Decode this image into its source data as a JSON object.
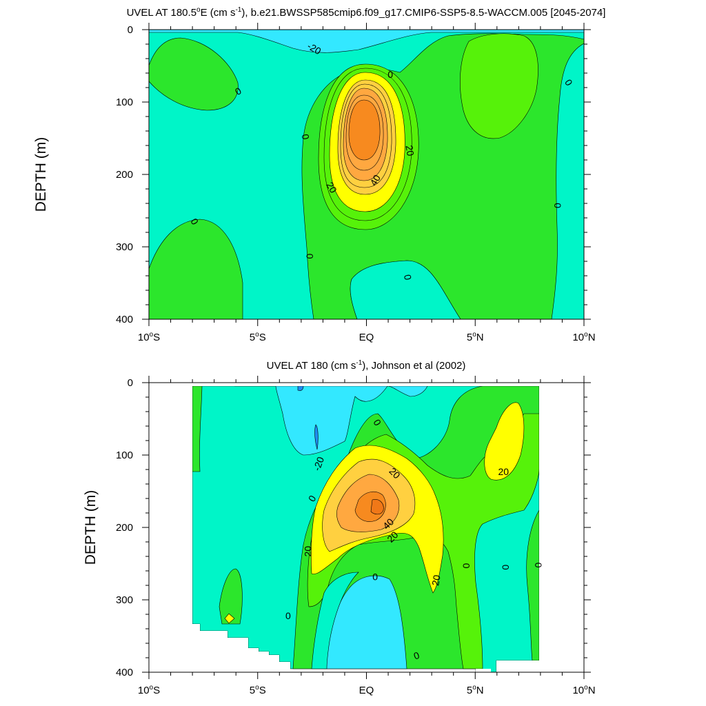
{
  "colors": {
    "levels": [
      -40,
      -20,
      0,
      20,
      30,
      40,
      50
    ],
    "fills": {
      "lt_-40": "#1e8cf0",
      "-40_-20": "#33e8ff",
      "-20_0": "#00f5c8",
      "0_10": "#2ce62c",
      "10_20": "#56f20a",
      "20_30": "#ffff00",
      "30_40": "#ffd040",
      "40_50": "#ffa840",
      "gt_50": "#f78a1f"
    },
    "missing": "#ffffff",
    "line": "#000000"
  },
  "chart_data": [
    {
      "type": "contour",
      "title": "UVEL AT 180.5°E (cm s⁻¹), b.e21.BWSSP585cmip6.f09_g17.CMIP6-SSP5-8.5-WACCM.005 [2045-2074]",
      "title_parts": {
        "pre": "UVEL AT 180.5",
        "deg": "o",
        "mid": "E (cm s",
        "sup": "-1",
        "post": "), b.e21.BWSSP585cmip6.f09_g17.CMIP6-SSP5-8.5-WACCM.005 [2045-2074]"
      },
      "ylabel": "DEPTH (m)",
      "xlim": [
        -10,
        10
      ],
      "ylim": [
        400,
        0
      ],
      "xticks": [
        {
          "v": -10,
          "n": "10",
          "d": "o",
          "h": "S"
        },
        {
          "v": -5,
          "n": "5",
          "d": "o",
          "h": "S"
        },
        {
          "v": 0,
          "n": "EQ",
          "d": "",
          "h": ""
        },
        {
          "v": 5,
          "n": "5",
          "d": "o",
          "h": "N"
        },
        {
          "v": 10,
          "n": "10",
          "d": "o",
          "h": "N"
        }
      ],
      "yticks": [
        "0",
        "100",
        "200",
        "300",
        "400"
      ],
      "jet": {
        "lat": 0.3,
        "depth": 145,
        "max_speed": 55
      },
      "contour_labels": [
        {
          "text": "-20",
          "lat": -2.4,
          "depth": 26,
          "rot": 30
        },
        {
          "text": "0",
          "lat": -5.9,
          "depth": 85,
          "rot": -30
        },
        {
          "text": "0",
          "lat": 1.1,
          "depth": 62,
          "rot": 0
        },
        {
          "text": "0",
          "lat": 9.3,
          "depth": 73,
          "rot": 60
        },
        {
          "text": "0",
          "lat": -2.8,
          "depth": 148,
          "rot": 80
        },
        {
          "text": "20",
          "lat": 2.0,
          "depth": 167,
          "rot": 80
        },
        {
          "text": "40",
          "lat": 0.4,
          "depth": 208,
          "rot": -60
        },
        {
          "text": "20",
          "lat": -1.6,
          "depth": 218,
          "rot": 60
        },
        {
          "text": "0",
          "lat": 8.8,
          "depth": 243,
          "rot": 90
        },
        {
          "text": "0",
          "lat": -7.9,
          "depth": 265,
          "rot": 60
        },
        {
          "text": "0",
          "lat": -2.6,
          "depth": 313,
          "rot": 90
        },
        {
          "text": "0",
          "lat": 1.9,
          "depth": 342,
          "rot": 80
        }
      ]
    },
    {
      "type": "contour",
      "title": "UVEL AT 180 (cm s⁻¹), Johnson et al (2002)",
      "title_parts": {
        "pre": "UVEL AT 180 (cm s",
        "deg": "",
        "mid": "",
        "sup": "-1",
        "post": "), Johnson et al (2002)"
      },
      "ylabel": "DEPTH (m)",
      "xlim": [
        -10,
        10
      ],
      "ylim": [
        400,
        0
      ],
      "xticks": [
        {
          "v": -10,
          "n": "10",
          "d": "o",
          "h": "S"
        },
        {
          "v": -5,
          "n": "5",
          "d": "o",
          "h": "S"
        },
        {
          "v": 0,
          "n": "EQ",
          "d": "",
          "h": ""
        },
        {
          "v": 5,
          "n": "5",
          "d": "o",
          "h": "N"
        },
        {
          "v": 10,
          "n": "10",
          "d": "o",
          "h": "N"
        }
      ],
      "yticks": [
        "0",
        "100",
        "200",
        "300",
        "400"
      ],
      "data_extent": {
        "lat": [
          -8,
          8
        ],
        "depth": [
          5,
          400
        ]
      },
      "jet": {
        "lat": 0.5,
        "depth": 165,
        "max_speed": 55
      },
      "contour_labels": [
        {
          "text": "0",
          "lat": 0.5,
          "depth": 55,
          "rot": 60
        },
        {
          "text": "20",
          "lat": 1.3,
          "depth": 125,
          "rot": 45
        },
        {
          "text": "-20",
          "lat": -2.2,
          "depth": 112,
          "rot": -70
        },
        {
          "text": "0",
          "lat": -2.5,
          "depth": 160,
          "rot": -60
        },
        {
          "text": "40",
          "lat": 1.0,
          "depth": 195,
          "rot": -45
        },
        {
          "text": "20",
          "lat": 1.2,
          "depth": 213,
          "rot": -45
        },
        {
          "text": "20",
          "lat": 6.3,
          "depth": 123,
          "rot": 0
        },
        {
          "text": "20",
          "lat": -2.7,
          "depth": 233,
          "rot": -90
        },
        {
          "text": "20",
          "lat": 3.2,
          "depth": 273,
          "rot": -80
        },
        {
          "text": "0",
          "lat": 0.4,
          "depth": 268,
          "rot": 0
        },
        {
          "text": "0",
          "lat": 4.6,
          "depth": 253,
          "rot": 90
        },
        {
          "text": "0",
          "lat": 6.4,
          "depth": 255,
          "rot": 90
        },
        {
          "text": "0",
          "lat": 7.9,
          "depth": 252,
          "rot": 90
        },
        {
          "text": "0",
          "lat": -3.6,
          "depth": 322,
          "rot": 0
        },
        {
          "text": "0",
          "lat": 2.3,
          "depth": 377,
          "rot": -20
        }
      ]
    }
  ]
}
